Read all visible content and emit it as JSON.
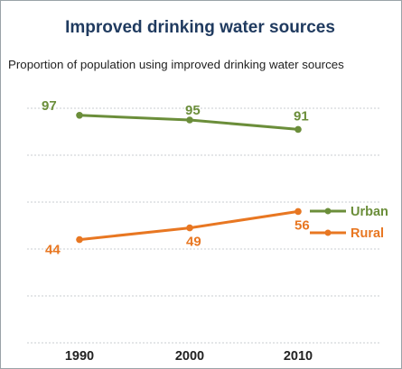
{
  "title": "Improved drinking water sources",
  "subtitle": "Proportion of population using improved drinking water sources",
  "colors": {
    "urban": "#6b8e3a",
    "rural": "#e87722",
    "grid": "#c8cdd2",
    "title": "#1f3a5f"
  },
  "chart_data": {
    "type": "line",
    "title": "Improved drinking water sources",
    "subtitle": "Proportion of population using improved drinking water sources",
    "xlabel": "",
    "ylabel": "",
    "categories": [
      "1990",
      "2000",
      "2010"
    ],
    "series": [
      {
        "name": "Urban",
        "values": [
          97,
          95,
          91
        ],
        "color": "#6b8e3a"
      },
      {
        "name": "Rural",
        "values": [
          44,
          49,
          56
        ],
        "color": "#e87722"
      }
    ],
    "ylim": [
      0,
      100
    ],
    "grid": true,
    "legend": "right"
  }
}
